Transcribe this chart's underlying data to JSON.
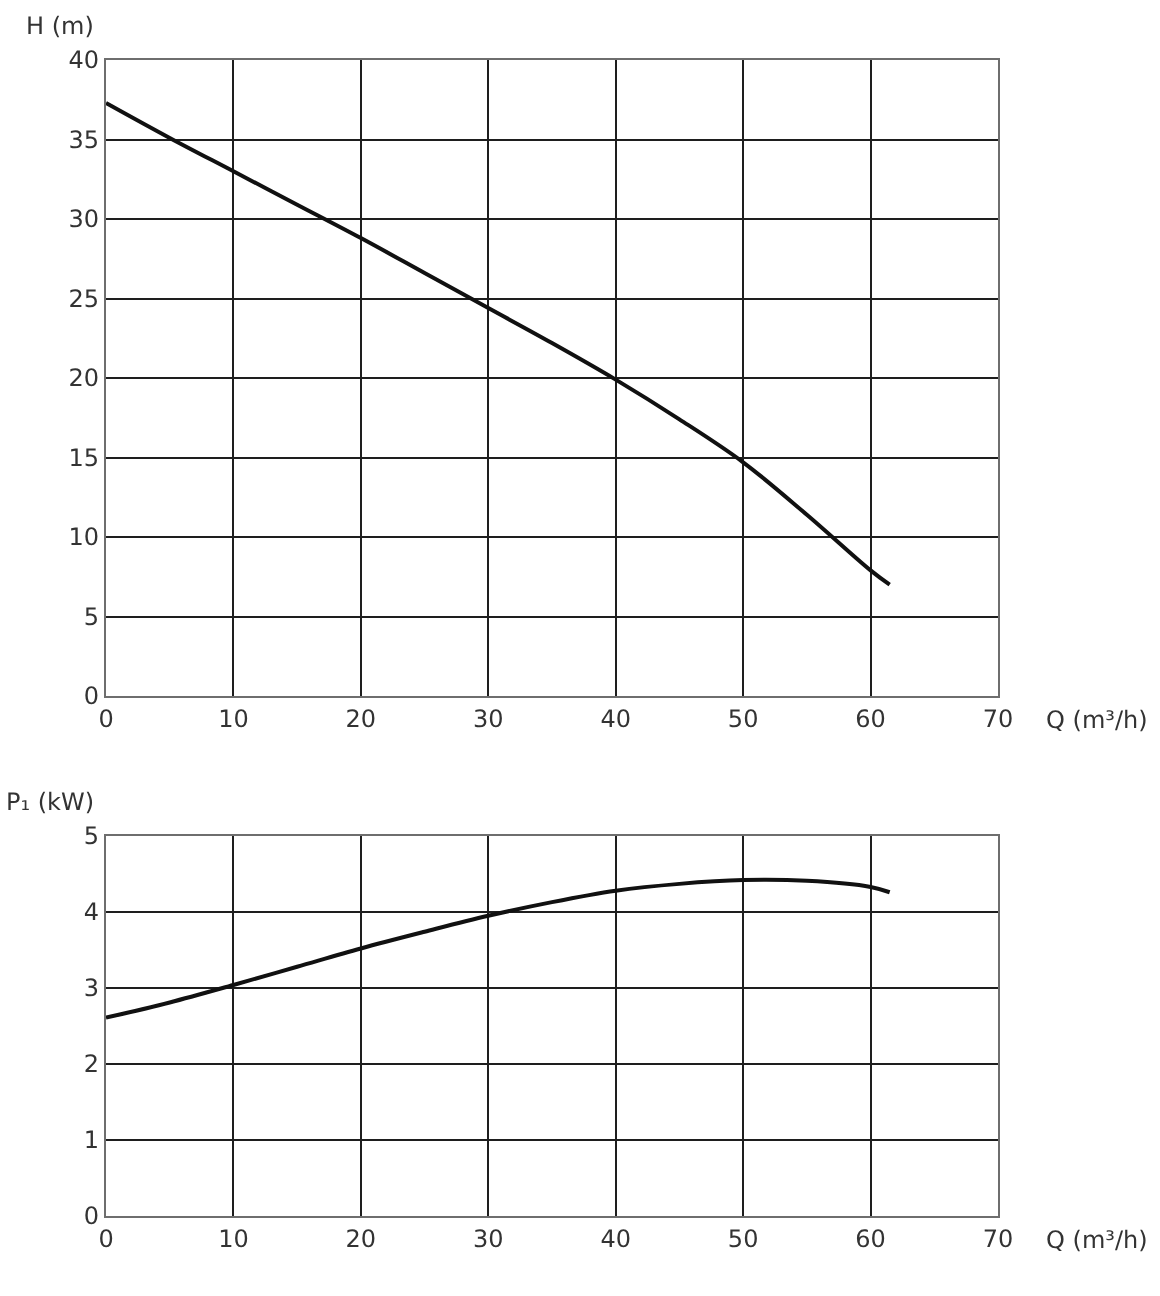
{
  "chart_data": [
    {
      "type": "line",
      "xlabel": "Q (m³/h)",
      "ylabel": "H (m)",
      "x": [
        0,
        5,
        10,
        15,
        20,
        25,
        30,
        35,
        40,
        45,
        50,
        55,
        60,
        61.5
      ],
      "series": [
        {
          "color": "#111111",
          "values": [
            37.3,
            35.1,
            33,
            30.9,
            28.8,
            26.6,
            24.4,
            22.2,
            19.9,
            17.4,
            14.7,
            11.4,
            7.9,
            7
          ]
        }
      ],
      "xlim": [
        0,
        70
      ],
      "xticks": [
        0,
        10,
        20,
        30,
        40,
        50,
        60,
        70
      ],
      "ylim": [
        0,
        40
      ],
      "yticks": [
        0,
        5,
        10,
        15,
        20,
        25,
        30,
        35,
        40
      ],
      "grid": true
    },
    {
      "type": "line",
      "xlabel": "Q (m³/h)",
      "ylabel": "P₁ (kW)",
      "x": [
        0,
        5,
        10,
        15,
        20,
        25,
        30,
        35,
        40,
        45,
        50,
        55,
        60,
        61.5
      ],
      "series": [
        {
          "color": "#111111",
          "values": [
            2.61,
            2.81,
            3.04,
            3.28,
            3.52,
            3.74,
            3.95,
            4.13,
            4.28,
            4.37,
            4.42,
            4.41,
            4.33,
            4.26
          ]
        }
      ],
      "xlim": [
        0,
        70
      ],
      "xticks": [
        0,
        10,
        20,
        30,
        40,
        50,
        60,
        70
      ],
      "ylim": [
        0,
        5
      ],
      "yticks": [
        0,
        1,
        2,
        3,
        4,
        5
      ],
      "grid": true
    }
  ]
}
